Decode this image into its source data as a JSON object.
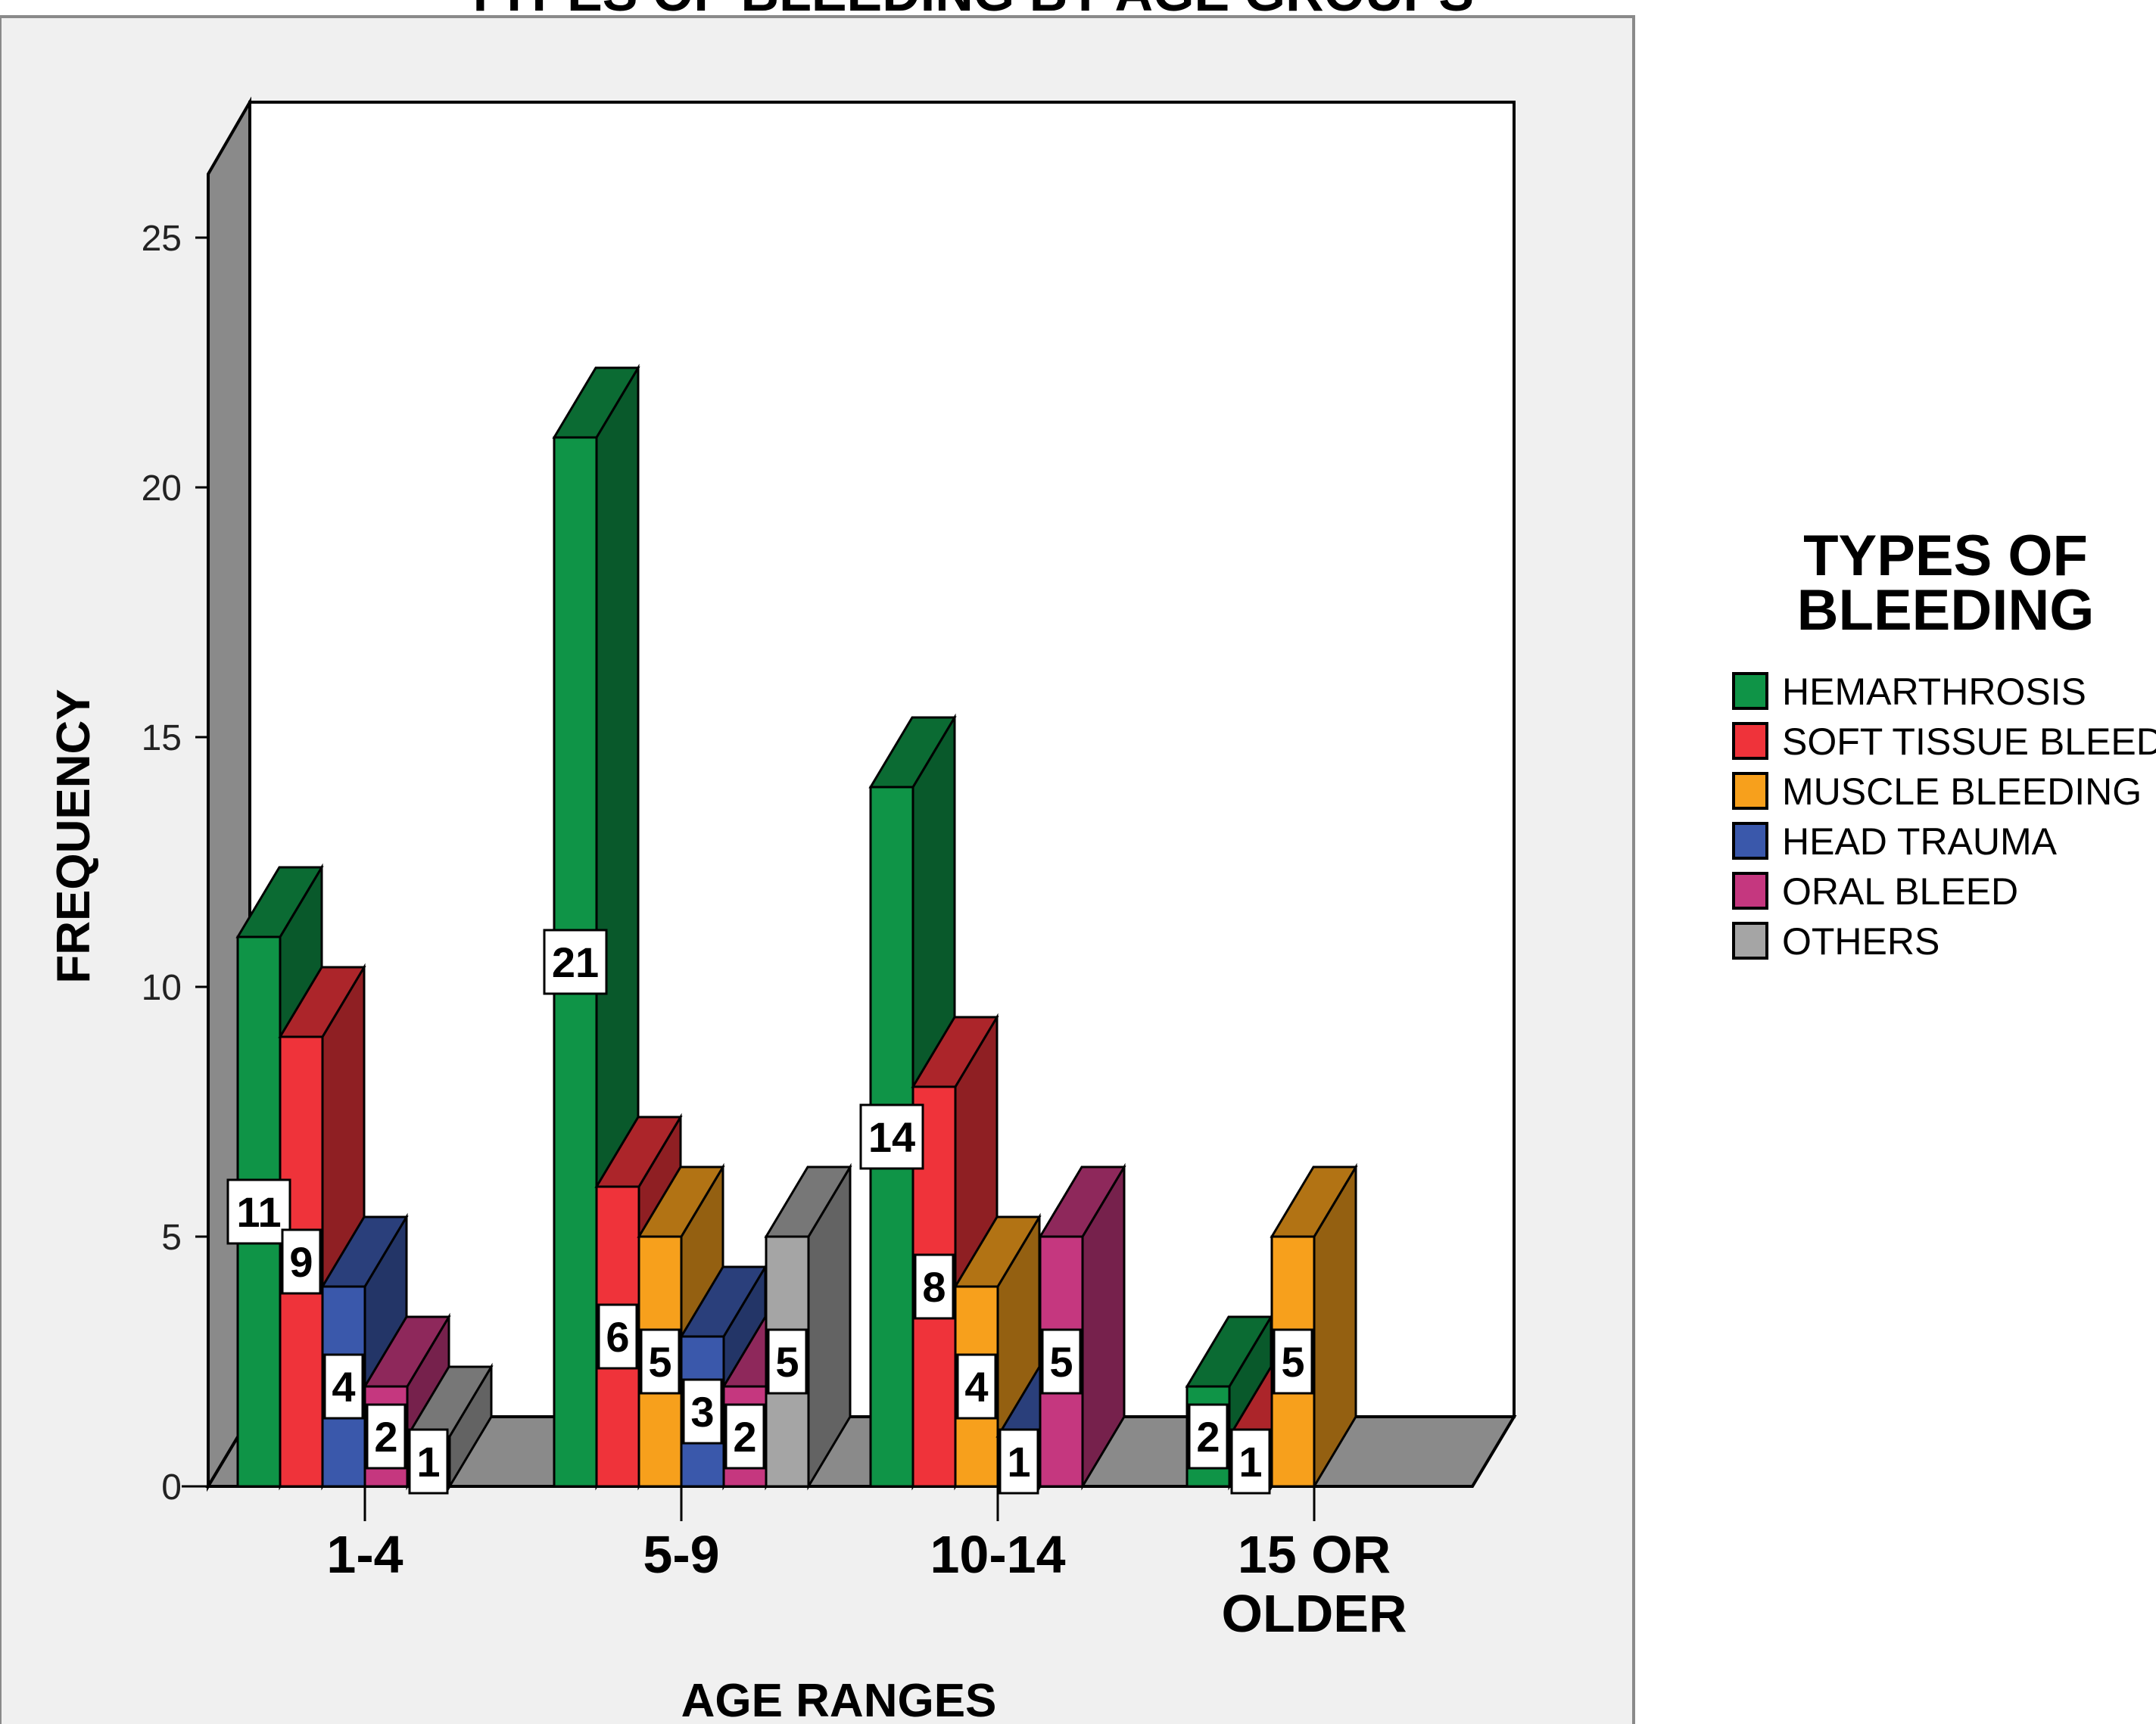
{
  "chart_data": {
    "type": "bar",
    "title": "TYPES OF BLEEDING BY AGE GROUPS",
    "xlabel": "AGE RANGES",
    "ylabel": "FREQUENCY",
    "ylim": [
      0,
      27
    ],
    "yticks": [
      "0",
      "5",
      "10",
      "15",
      "20",
      "25"
    ],
    "categories": [
      "1-4",
      "5-9",
      "10-14",
      "15 OR OLDER"
    ],
    "grid": false,
    "legend": {
      "title": "TYPES  OF BLEEDING",
      "placement": "right"
    },
    "series": [
      {
        "name": "HEMARTHROSIS",
        "color": "#0f9447",
        "values": [
          11,
          21,
          14,
          2
        ]
      },
      {
        "name": "SOFT TISSUE BLEED",
        "color": "#ef333a",
        "values": [
          9,
          6,
          8,
          1
        ]
      },
      {
        "name": "MUSCLE BLEEDING",
        "color": "#f7a01c",
        "values": [
          null,
          5,
          4,
          5
        ]
      },
      {
        "name": "HEAD TRAUMA",
        "color": "#3a58ab",
        "values": [
          4,
          3,
          1,
          null
        ]
      },
      {
        "name": "ORAL BLEED",
        "color": "#c5377f",
        "values": [
          2,
          2,
          5,
          null
        ]
      },
      {
        "name": "OTHERS",
        "color": "#a5a5a5",
        "values": [
          1,
          5,
          null,
          null
        ]
      }
    ]
  }
}
